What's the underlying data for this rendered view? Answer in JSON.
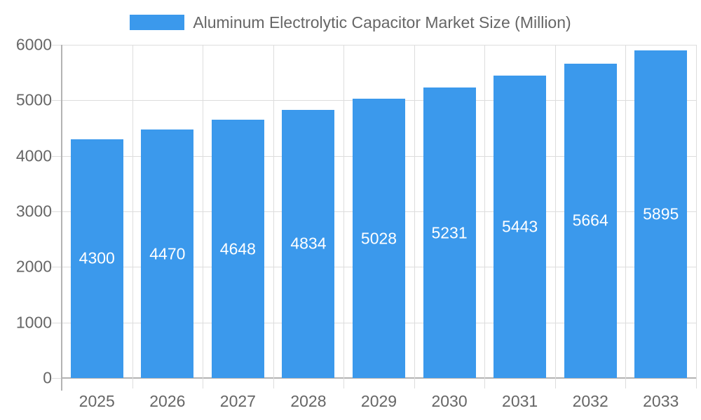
{
  "chart_data": {
    "type": "bar",
    "title": "Aluminum Electrolytic Capacitor Market Size (Million)",
    "categories": [
      "2025",
      "2026",
      "2027",
      "2028",
      "2029",
      "2030",
      "2031",
      "2032",
      "2033"
    ],
    "series": [
      {
        "name": "Aluminum Electrolytic Capacitor Market Size (Million)",
        "values": [
          4300,
          4470,
          4648,
          4834,
          5028,
          5231,
          5443,
          5664,
          5895
        ]
      }
    ],
    "xlabel": "",
    "ylabel": "",
    "ylim": [
      0,
      6000
    ],
    "y_ticks": [
      "0",
      "1000",
      "2000",
      "3000",
      "4000",
      "5000",
      "6000"
    ],
    "grid": true,
    "legend_position": "top",
    "colors": {
      "bar": "#3B99EC",
      "bar_value_text": "#FFFFFF",
      "axis_text": "#666666",
      "legend_text": "#666666",
      "gridline": "#DDDDDD",
      "axis_line": "#B3B3B3",
      "background": "#FFFFFF"
    }
  }
}
